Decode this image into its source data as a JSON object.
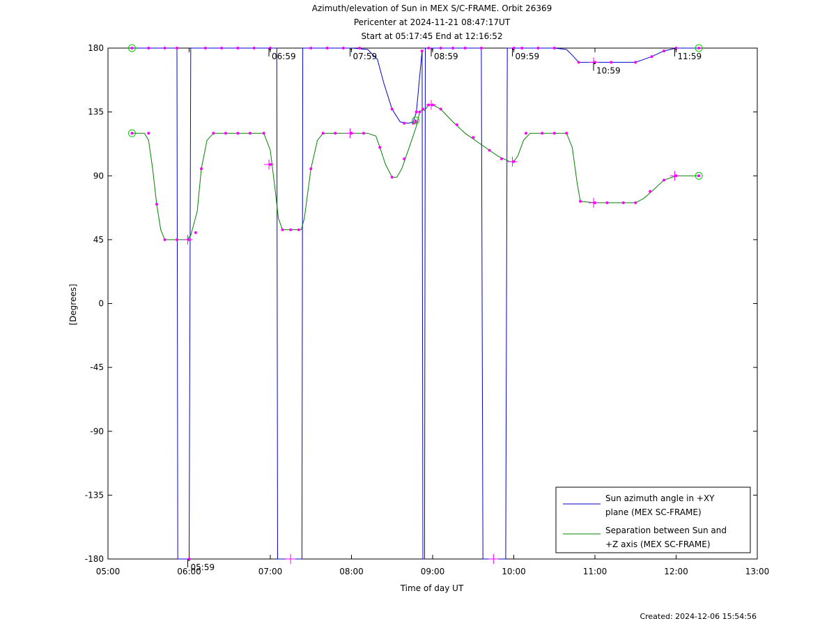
{
  "chart_data": {
    "type": "line",
    "title": "Azimuth/elevation of Sun in MEX S/C-FRAME.  Orbit 26369",
    "subtitle_1": "Pericenter at 2024-11-21 08:47:17UT",
    "subtitle_2": "Start at 05:17:45 End at 12:16:52",
    "xlabel": "Time of day UT",
    "ylabel": "[Degrees]",
    "xlim": [
      5.0,
      13.0
    ],
    "ylim": [
      -180,
      180
    ],
    "x_ticks": [
      {
        "value": 5,
        "label": "05:00"
      },
      {
        "value": 6,
        "label": "06:00"
      },
      {
        "value": 7,
        "label": "07:00"
      },
      {
        "value": 8,
        "label": "08:00"
      },
      {
        "value": 9,
        "label": "09:00"
      },
      {
        "value": 10,
        "label": "10:00"
      },
      {
        "value": 11,
        "label": "11:00"
      },
      {
        "value": 12,
        "label": "12:00"
      },
      {
        "value": 13,
        "label": "13:00"
      }
    ],
    "y_ticks": [
      {
        "value": 180,
        "label": "180"
      },
      {
        "value": 135,
        "label": "135"
      },
      {
        "value": 90,
        "label": "90"
      },
      {
        "value": 45,
        "label": "45"
      },
      {
        "value": 0,
        "label": "0"
      },
      {
        "value": -45,
        "label": "-45"
      },
      {
        "value": -90,
        "label": "-90"
      },
      {
        "value": -135,
        "label": "-135"
      },
      {
        "value": -180,
        "label": "-180"
      }
    ],
    "grid": false,
    "legend_position": "bottom-right",
    "series": [
      {
        "name": "Sun azimuth angle in +XY plane (MEX SC-FRAME)",
        "color": "#0000cc",
        "points": [
          [
            5.296,
            180
          ],
          [
            5.5,
            180
          ],
          [
            5.7,
            180
          ],
          [
            5.85,
            180
          ],
          [
            5.86,
            -180
          ],
          [
            6.0,
            -180
          ],
          [
            6.02,
            180
          ],
          [
            6.2,
            180
          ],
          [
            6.5,
            180
          ],
          [
            6.8,
            180
          ],
          [
            7.0,
            180
          ],
          [
            7.08,
            180
          ],
          [
            7.09,
            -180
          ],
          [
            7.25,
            -180
          ],
          [
            7.39,
            -180
          ],
          [
            7.4,
            180
          ],
          [
            7.5,
            180
          ],
          [
            7.8,
            180
          ],
          [
            8.0,
            180
          ],
          [
            8.2,
            179
          ],
          [
            8.32,
            172
          ],
          [
            8.4,
            155
          ],
          [
            8.5,
            137
          ],
          [
            8.6,
            128
          ],
          [
            8.7,
            127
          ],
          [
            8.76,
            128
          ],
          [
            8.8,
            135
          ],
          [
            8.84,
            160
          ],
          [
            8.87,
            178
          ],
          [
            8.88,
            -180
          ],
          [
            8.9,
            -180
          ],
          [
            8.91,
            180
          ],
          [
            9.0,
            180
          ],
          [
            9.2,
            180
          ],
          [
            9.4,
            180
          ],
          [
            9.6,
            180
          ],
          [
            9.62,
            -180
          ],
          [
            9.8,
            -180
          ],
          [
            9.9,
            -180
          ],
          [
            9.92,
            180
          ],
          [
            10.0,
            180
          ],
          [
            10.2,
            180
          ],
          [
            10.5,
            180
          ],
          [
            10.65,
            179
          ],
          [
            10.72,
            175
          ],
          [
            10.8,
            170
          ],
          [
            11.0,
            170
          ],
          [
            11.3,
            170
          ],
          [
            11.5,
            170
          ],
          [
            11.6,
            172
          ],
          [
            11.7,
            174
          ],
          [
            11.85,
            178
          ],
          [
            12.0,
            180
          ],
          [
            12.28,
            180
          ]
        ],
        "markers_x": [
          5.296,
          5.5,
          5.7,
          5.85,
          6.0,
          6.2,
          6.4,
          6.6,
          6.8,
          7.0,
          7.5,
          7.7,
          7.9,
          8.1,
          8.5,
          8.65,
          8.76,
          8.8,
          8.87,
          8.95,
          9.1,
          9.25,
          9.4,
          9.6,
          10.0,
          10.1,
          10.3,
          10.5,
          10.8,
          11.0,
          11.2,
          11.5,
          11.7,
          11.85,
          12.0,
          12.28
        ],
        "markers_y": [
          180,
          180,
          180,
          180,
          -180,
          180,
          180,
          180,
          180,
          180,
          180,
          180,
          180,
          180,
          137,
          127,
          127,
          135,
          178,
          180,
          180,
          180,
          180,
          180,
          180,
          180,
          180,
          180,
          170,
          170,
          170,
          170,
          174,
          178,
          180,
          180
        ]
      },
      {
        "name": "Separation between Sun and +Z axis (MEX SC-FRAME)",
        "color": "#008000",
        "points": [
          [
            5.296,
            120
          ],
          [
            5.45,
            120
          ],
          [
            5.5,
            115
          ],
          [
            5.55,
            95
          ],
          [
            5.6,
            70
          ],
          [
            5.65,
            52
          ],
          [
            5.7,
            45
          ],
          [
            5.8,
            45
          ],
          [
            5.9,
            45
          ],
          [
            5.97,
            45
          ],
          [
            6.02,
            48
          ],
          [
            6.1,
            65
          ],
          [
            6.15,
            95
          ],
          [
            6.22,
            115
          ],
          [
            6.3,
            120
          ],
          [
            6.5,
            120
          ],
          [
            6.8,
            120
          ],
          [
            6.92,
            120
          ],
          [
            7.0,
            108
          ],
          [
            7.06,
            80
          ],
          [
            7.1,
            60
          ],
          [
            7.15,
            52
          ],
          [
            7.2,
            52
          ],
          [
            7.3,
            52
          ],
          [
            7.38,
            52
          ],
          [
            7.42,
            60
          ],
          [
            7.5,
            95
          ],
          [
            7.58,
            115
          ],
          [
            7.65,
            120
          ],
          [
            7.9,
            120
          ],
          [
            8.2,
            120
          ],
          [
            8.3,
            118
          ],
          [
            8.35,
            110
          ],
          [
            8.42,
            98
          ],
          [
            8.5,
            89
          ],
          [
            8.56,
            89
          ],
          [
            8.62,
            95
          ],
          [
            8.7,
            108
          ],
          [
            8.8,
            125
          ],
          [
            8.84,
            135
          ],
          [
            8.88,
            137
          ],
          [
            8.9,
            136
          ],
          [
            8.95,
            140
          ],
          [
            9.0,
            140
          ],
          [
            9.1,
            137
          ],
          [
            9.25,
            128
          ],
          [
            9.4,
            120
          ],
          [
            9.6,
            112
          ],
          [
            9.8,
            104
          ],
          [
            9.95,
            100
          ],
          [
            10.0,
            100
          ],
          [
            10.05,
            104
          ],
          [
            10.12,
            115
          ],
          [
            10.2,
            120
          ],
          [
            10.4,
            120
          ],
          [
            10.65,
            120
          ],
          [
            10.72,
            110
          ],
          [
            10.78,
            85
          ],
          [
            10.82,
            72
          ],
          [
            11.0,
            71
          ],
          [
            11.2,
            71
          ],
          [
            11.4,
            71
          ],
          [
            11.5,
            71
          ],
          [
            11.6,
            74
          ],
          [
            11.7,
            79
          ],
          [
            11.85,
            87
          ],
          [
            12.0,
            90
          ],
          [
            12.28,
            90
          ]
        ],
        "markers_x": [
          5.296,
          5.5,
          5.6,
          5.7,
          5.85,
          6.0,
          6.08,
          6.15,
          6.3,
          6.45,
          6.6,
          6.75,
          6.92,
          7.0,
          7.15,
          7.25,
          7.35,
          7.5,
          7.65,
          7.8,
          8.0,
          8.15,
          8.35,
          8.5,
          8.65,
          8.79,
          8.84,
          8.88,
          8.95,
          9.0,
          9.1,
          9.3,
          9.5,
          9.7,
          9.85,
          10.0,
          10.15,
          10.35,
          10.5,
          10.65,
          10.82,
          11.0,
          11.15,
          11.35,
          11.5,
          11.68,
          11.85,
          12.0,
          12.28
        ],
        "markers_y": [
          120,
          120,
          70,
          45,
          45,
          45,
          50,
          95,
          120,
          120,
          120,
          120,
          120,
          98,
          52,
          52,
          52,
          95,
          120,
          120,
          120,
          120,
          110,
          89,
          102,
          128,
          135,
          137,
          140,
          140,
          137,
          126,
          117,
          108,
          102,
          100,
          120,
          120,
          120,
          120,
          72,
          71,
          71,
          71,
          71,
          79,
          87,
          90,
          90
        ]
      }
    ],
    "circle_markers": [
      {
        "series": 0,
        "x": 5.296,
        "y": 180
      },
      {
        "series": 0,
        "x": 12.28,
        "y": 180
      },
      {
        "series": 1,
        "x": 5.296,
        "y": 120
      },
      {
        "series": 1,
        "x": 12.28,
        "y": 90
      },
      {
        "series": 1,
        "x": 8.79,
        "y": 129
      }
    ],
    "hour_marks": [
      {
        "x": 5.983,
        "y": -180,
        "label": "05:59"
      },
      {
        "x": 6.983,
        "y": 180,
        "label": "06:59"
      },
      {
        "x": 7.983,
        "y": 180,
        "label": "07:59"
      },
      {
        "x": 8.983,
        "y": 180,
        "label": "08:59"
      },
      {
        "x": 9.983,
        "y": 180,
        "label": "09:59"
      },
      {
        "x": 10.983,
        "y": 170,
        "label": "10:59"
      },
      {
        "x": 11.983,
        "y": 180,
        "label": "11:59"
      }
    ],
    "cross_markers": [
      {
        "x": 5.983,
        "y": 45
      },
      {
        "x": 6.983,
        "y": 98
      },
      {
        "x": 7.983,
        "y": 120
      },
      {
        "x": 8.983,
        "y": 140
      },
      {
        "x": 9.983,
        "y": 100
      },
      {
        "x": 10.983,
        "y": 71
      },
      {
        "x": 11.983,
        "y": 90
      },
      {
        "x": 10.983,
        "y": 170
      },
      {
        "x": 9.75,
        "y": -180
      },
      {
        "x": 7.25,
        "y": -180
      }
    ]
  },
  "footer": {
    "created": "Created: 2024-12-06 15:54:56"
  }
}
